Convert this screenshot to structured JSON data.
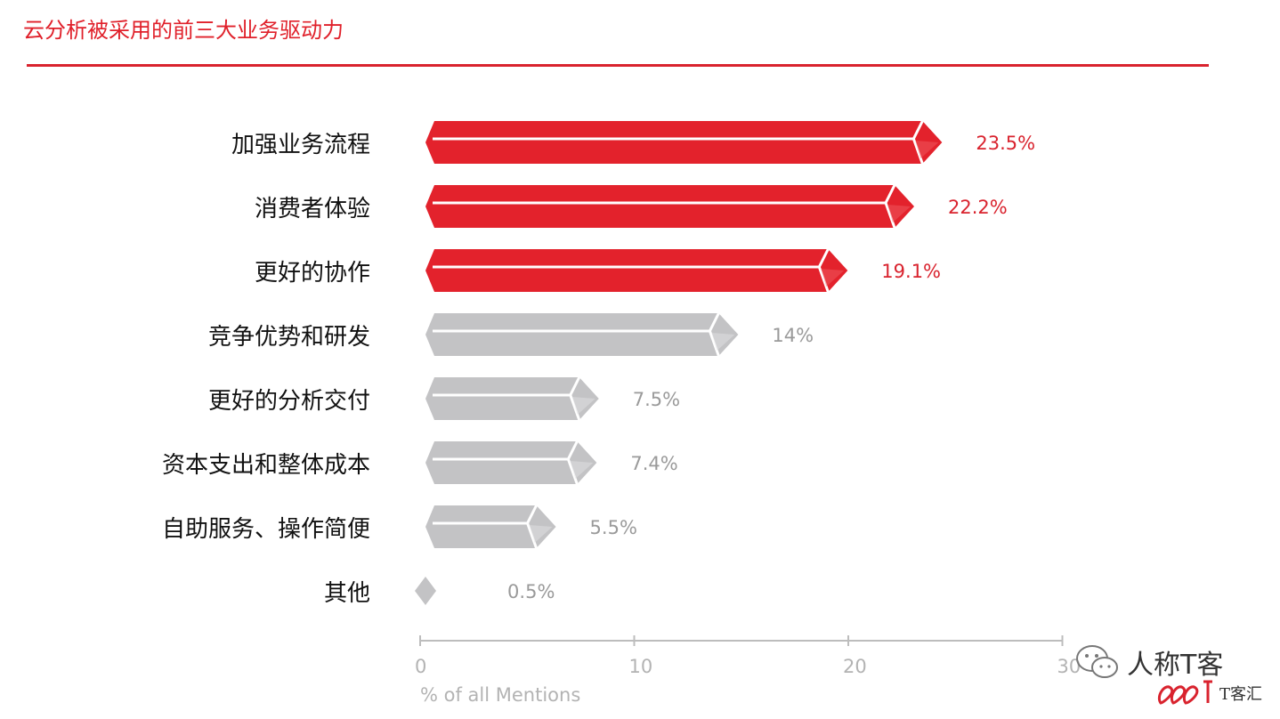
{
  "title": "云分析被采用的前三大业务驱动力",
  "colors": {
    "accent": "#e3222c",
    "accent_light": "#f05a60",
    "gray": "#c3c3c5",
    "gray_light": "#e2e2e4",
    "axis": "#bdbdbd"
  },
  "chart_data": {
    "type": "bar",
    "orientation": "horizontal",
    "title": "云分析被采用的前三大业务驱动力",
    "categories": [
      "加强业务流程",
      "消费者体验",
      "更好的协作",
      "竞争优势和研发",
      "更好的分析交付",
      "资本支出和整体成本",
      "自助服务、操作简便",
      "其他"
    ],
    "values": [
      23.5,
      22.2,
      19.1,
      14,
      7.5,
      7.4,
      5.5,
      0.5
    ],
    "value_labels": [
      "23.5%",
      "22.2%",
      "19.1%",
      "14%",
      "7.5%",
      "7.4%",
      "5.5%",
      "0.5%"
    ],
    "highlight_top": 3,
    "xlabel": "% of all Mentions",
    "xlim": [
      0,
      30
    ],
    "xticks": [
      "0",
      "10",
      "20",
      "30"
    ]
  },
  "watermark": {
    "name": "人称T客",
    "sub": "T客汇"
  }
}
